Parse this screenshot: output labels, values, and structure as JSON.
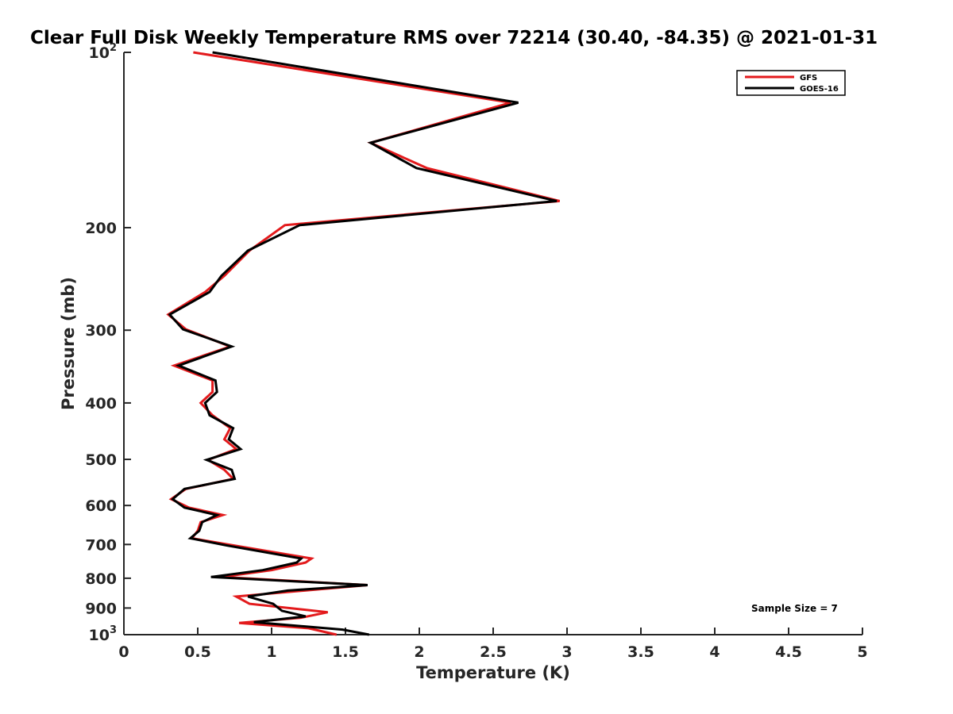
{
  "chart_data": {
    "type": "line",
    "title": "Clear Full Disk Weekly Temperature RMS over 72214 (30.40, -84.35) @ 2021-01-31",
    "xlabel": "Temperature (K)",
    "ylabel": "Pressure (mb)",
    "xlim": [
      0,
      5
    ],
    "ylim": [
      100,
      1000
    ],
    "y_scale": "log",
    "y_reversed": true,
    "x_ticks": [
      {
        "value": 0,
        "label": "0"
      },
      {
        "value": 0.5,
        "label": "0.5"
      },
      {
        "value": 1,
        "label": "1"
      },
      {
        "value": 1.5,
        "label": "1.5"
      },
      {
        "value": 2,
        "label": "2"
      },
      {
        "value": 2.5,
        "label": "2.5"
      },
      {
        "value": 3,
        "label": "3"
      },
      {
        "value": 3.5,
        "label": "3.5"
      },
      {
        "value": 4,
        "label": "4"
      },
      {
        "value": 4.5,
        "label": "4.5"
      },
      {
        "value": 5,
        "label": "5"
      }
    ],
    "y_ticks": [
      {
        "value": 100,
        "base": "10",
        "exp": "2"
      },
      {
        "value": 200,
        "label": "200"
      },
      {
        "value": 300,
        "label": "300"
      },
      {
        "value": 400,
        "label": "400"
      },
      {
        "value": 500,
        "label": "500"
      },
      {
        "value": 600,
        "label": "600"
      },
      {
        "value": 700,
        "label": "700"
      },
      {
        "value": 800,
        "label": "800"
      },
      {
        "value": 900,
        "label": "900"
      },
      {
        "value": 1000,
        "base": "10",
        "exp": "3"
      }
    ],
    "grid": false,
    "legend_position": "top-right",
    "annotation": "Sample Size = 7",
    "series": [
      {
        "name": "GFS",
        "color": "#e31a1c",
        "points": [
          [
            0.47,
            100
          ],
          [
            2.62,
            122
          ],
          [
            1.67,
            143
          ],
          [
            2.05,
            158
          ],
          [
            2.95,
            180
          ],
          [
            1.09,
            198
          ],
          [
            0.85,
            219
          ],
          [
            0.68,
            242
          ],
          [
            0.55,
            258
          ],
          [
            0.3,
            282
          ],
          [
            0.42,
            299
          ],
          [
            0.72,
            320
          ],
          [
            0.34,
            345
          ],
          [
            0.6,
            366
          ],
          [
            0.6,
            383
          ],
          [
            0.52,
            400
          ],
          [
            0.6,
            420
          ],
          [
            0.72,
            442
          ],
          [
            0.68,
            462
          ],
          [
            0.76,
            480
          ],
          [
            0.57,
            501
          ],
          [
            0.68,
            521
          ],
          [
            0.74,
            540
          ],
          [
            0.42,
            562
          ],
          [
            0.32,
            585
          ],
          [
            0.44,
            605
          ],
          [
            0.67,
            623
          ],
          [
            0.52,
            641
          ],
          [
            0.5,
            663
          ],
          [
            0.46,
            683
          ],
          [
            0.75,
            703
          ],
          [
            1.27,
            740
          ],
          [
            1.23,
            752
          ],
          [
            1.0,
            775
          ],
          [
            0.66,
            796
          ],
          [
            1.65,
            822
          ],
          [
            0.76,
            860
          ],
          [
            0.85,
            885
          ],
          [
            1.38,
            915
          ],
          [
            1.2,
            935
          ],
          [
            0.78,
            955
          ],
          [
            1.25,
            975
          ],
          [
            1.44,
            1000
          ]
        ]
      },
      {
        "name": "GOES-16",
        "color": "#000000",
        "points": [
          [
            0.6,
            100
          ],
          [
            2.67,
            122
          ],
          [
            1.67,
            143
          ],
          [
            1.98,
            158
          ],
          [
            2.93,
            180
          ],
          [
            1.19,
            198
          ],
          [
            0.84,
            219
          ],
          [
            0.66,
            242
          ],
          [
            0.58,
            258
          ],
          [
            0.31,
            282
          ],
          [
            0.4,
            299
          ],
          [
            0.73,
            320
          ],
          [
            0.37,
            345
          ],
          [
            0.62,
            366
          ],
          [
            0.63,
            383
          ],
          [
            0.55,
            400
          ],
          [
            0.58,
            420
          ],
          [
            0.74,
            442
          ],
          [
            0.71,
            462
          ],
          [
            0.79,
            480
          ],
          [
            0.56,
            501
          ],
          [
            0.73,
            521
          ],
          [
            0.75,
            540
          ],
          [
            0.41,
            562
          ],
          [
            0.33,
            585
          ],
          [
            0.41,
            605
          ],
          [
            0.63,
            623
          ],
          [
            0.53,
            641
          ],
          [
            0.51,
            663
          ],
          [
            0.45,
            683
          ],
          [
            0.7,
            703
          ],
          [
            1.2,
            740
          ],
          [
            1.17,
            752
          ],
          [
            0.94,
            775
          ],
          [
            0.59,
            796
          ],
          [
            1.65,
            822
          ],
          [
            1.11,
            840
          ],
          [
            0.84,
            860
          ],
          [
            1.01,
            885
          ],
          [
            1.07,
            910
          ],
          [
            1.23,
            930
          ],
          [
            0.88,
            952
          ],
          [
            1.48,
            980
          ],
          [
            1.66,
            1000
          ]
        ]
      }
    ]
  }
}
